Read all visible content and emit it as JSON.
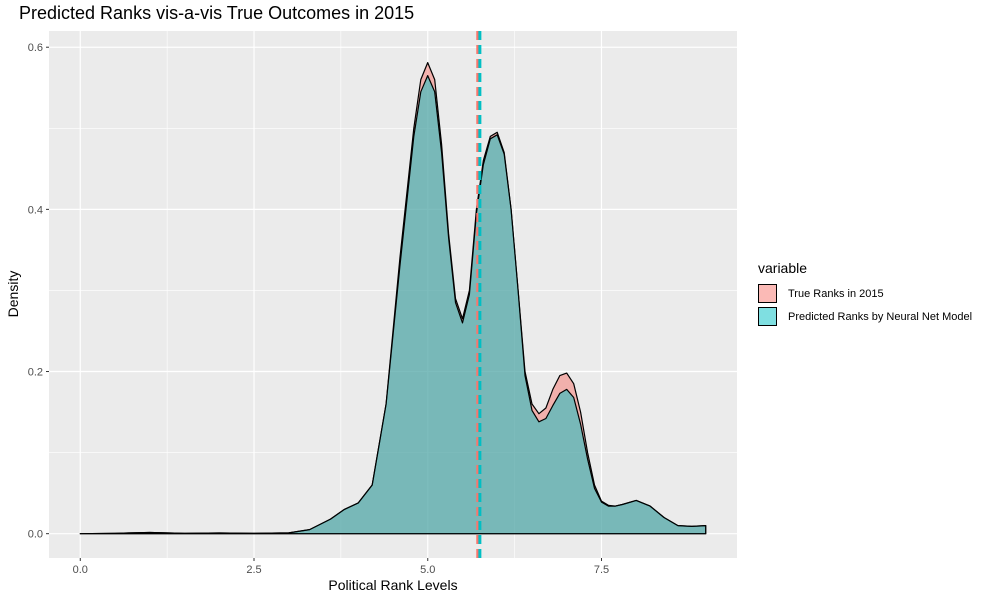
{
  "chart_data": {
    "type": "area",
    "title": "Predicted Ranks vis-a-vis True Outcomes in 2015",
    "xlabel": "Political Rank Levels",
    "ylabel": "Density",
    "xlim": [
      -0.45,
      9.45
    ],
    "ylim": [
      -0.03,
      0.62
    ],
    "x_ticks": [
      {
        "value": 0,
        "label": "0.0"
      },
      {
        "value": 2.5,
        "label": "2.5"
      },
      {
        "value": 5,
        "label": "5.0"
      },
      {
        "value": 7.5,
        "label": "7.5"
      }
    ],
    "y_ticks": [
      {
        "value": 0,
        "label": "0.0"
      },
      {
        "value": 0.2,
        "label": "0.2"
      },
      {
        "value": 0.4,
        "label": "0.4"
      },
      {
        "value": 0.6,
        "label": "0.6"
      }
    ],
    "grid": true,
    "legend": {
      "title": "variable",
      "position": "right"
    },
    "series": [
      {
        "name": "True Ranks in 2015",
        "color": "#F8766D",
        "mean": 5.72,
        "points": [
          [
            0,
            0.0
          ],
          [
            0.5,
            0.0005
          ],
          [
            1,
            0.0015
          ],
          [
            1.5,
            0.0005
          ],
          [
            2,
            0.0008
          ],
          [
            2.5,
            0.0005
          ],
          [
            3,
            0.001
          ],
          [
            3.3,
            0.005
          ],
          [
            3.6,
            0.018
          ],
          [
            3.8,
            0.03
          ],
          [
            4.0,
            0.038
          ],
          [
            4.2,
            0.06
          ],
          [
            4.4,
            0.16
          ],
          [
            4.6,
            0.34
          ],
          [
            4.8,
            0.5
          ],
          [
            4.9,
            0.56
          ],
          [
            5.0,
            0.581
          ],
          [
            5.1,
            0.56
          ],
          [
            5.2,
            0.48
          ],
          [
            5.3,
            0.37
          ],
          [
            5.4,
            0.29
          ],
          [
            5.5,
            0.265
          ],
          [
            5.6,
            0.3
          ],
          [
            5.7,
            0.4
          ],
          [
            5.8,
            0.46
          ],
          [
            5.9,
            0.49
          ],
          [
            6.0,
            0.495
          ],
          [
            6.1,
            0.47
          ],
          [
            6.2,
            0.4
          ],
          [
            6.3,
            0.3
          ],
          [
            6.4,
            0.2
          ],
          [
            6.5,
            0.16
          ],
          [
            6.6,
            0.148
          ],
          [
            6.7,
            0.155
          ],
          [
            6.8,
            0.178
          ],
          [
            6.9,
            0.195
          ],
          [
            7.0,
            0.198
          ],
          [
            7.1,
            0.185
          ],
          [
            7.2,
            0.15
          ],
          [
            7.3,
            0.1
          ],
          [
            7.4,
            0.06
          ],
          [
            7.5,
            0.04
          ],
          [
            7.6,
            0.035
          ],
          [
            7.7,
            0.034
          ],
          [
            7.8,
            0.036
          ],
          [
            8.0,
            0.041
          ],
          [
            8.2,
            0.034
          ],
          [
            8.4,
            0.02
          ],
          [
            8.6,
            0.01
          ],
          [
            8.8,
            0.009
          ],
          [
            9.0,
            0.01
          ]
        ]
      },
      {
        "name": "Predicted Ranks by Neural Net Model",
        "color": "#00BFC4",
        "mean": 5.75,
        "points": [
          [
            0,
            0.0
          ],
          [
            0.5,
            0.0005
          ],
          [
            1,
            0.0015
          ],
          [
            1.5,
            0.0005
          ],
          [
            2,
            0.0008
          ],
          [
            2.5,
            0.0005
          ],
          [
            3,
            0.001
          ],
          [
            3.3,
            0.005
          ],
          [
            3.6,
            0.018
          ],
          [
            3.8,
            0.03
          ],
          [
            4.0,
            0.038
          ],
          [
            4.2,
            0.06
          ],
          [
            4.4,
            0.16
          ],
          [
            4.6,
            0.33
          ],
          [
            4.8,
            0.49
          ],
          [
            4.9,
            0.545
          ],
          [
            5.0,
            0.565
          ],
          [
            5.1,
            0.545
          ],
          [
            5.2,
            0.47
          ],
          [
            5.3,
            0.365
          ],
          [
            5.4,
            0.285
          ],
          [
            5.5,
            0.26
          ],
          [
            5.6,
            0.295
          ],
          [
            5.7,
            0.395
          ],
          [
            5.8,
            0.455
          ],
          [
            5.9,
            0.487
          ],
          [
            6.0,
            0.492
          ],
          [
            6.1,
            0.468
          ],
          [
            6.2,
            0.4
          ],
          [
            6.3,
            0.3
          ],
          [
            6.4,
            0.195
          ],
          [
            6.5,
            0.152
          ],
          [
            6.6,
            0.138
          ],
          [
            6.7,
            0.142
          ],
          [
            6.8,
            0.158
          ],
          [
            6.9,
            0.173
          ],
          [
            7.0,
            0.178
          ],
          [
            7.1,
            0.168
          ],
          [
            7.2,
            0.135
          ],
          [
            7.3,
            0.092
          ],
          [
            7.4,
            0.056
          ],
          [
            7.5,
            0.039
          ],
          [
            7.6,
            0.034
          ],
          [
            7.7,
            0.034
          ],
          [
            7.8,
            0.036
          ],
          [
            8.0,
            0.041
          ],
          [
            8.2,
            0.034
          ],
          [
            8.4,
            0.02
          ],
          [
            8.6,
            0.01
          ],
          [
            8.8,
            0.009
          ],
          [
            9.0,
            0.01
          ]
        ]
      }
    ]
  }
}
